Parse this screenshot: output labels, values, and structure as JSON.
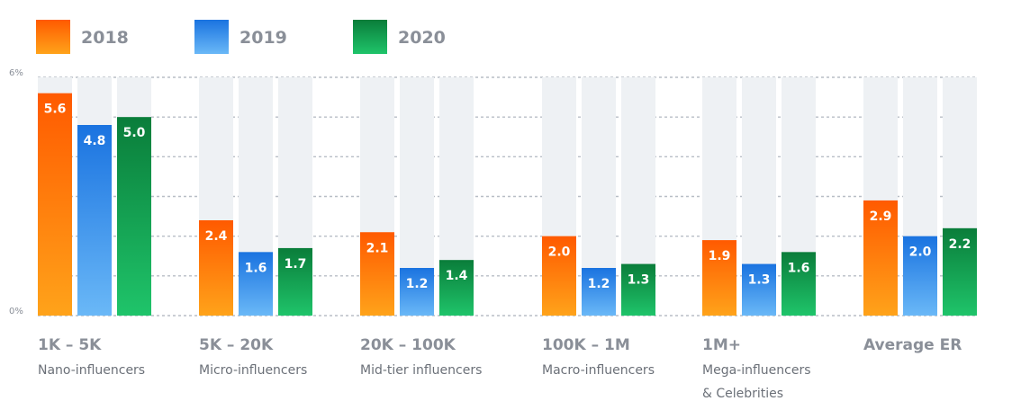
{
  "chart_data": {
    "type": "bar",
    "y_tick_labels": [
      "6%",
      "0%"
    ],
    "ylim": [
      0,
      6
    ],
    "legend_position": "top-left",
    "grid": true,
    "categories": [
      {
        "range": "1K – 5K",
        "tier": [
          "Nano-influencers"
        ]
      },
      {
        "range": "5K – 20K",
        "tier": [
          "Micro-influencers"
        ]
      },
      {
        "range": "20K – 100K",
        "tier": [
          "Mid-tier influencers"
        ]
      },
      {
        "range": "100K – 1M",
        "tier": [
          "Macro-influencers"
        ]
      },
      {
        "range": "1M+",
        "tier": [
          "Mega-influencers",
          "& Celebrities"
        ]
      },
      {
        "range": "Average ER",
        "tier": []
      }
    ],
    "series": [
      {
        "name": "2018",
        "values": [
          5.6,
          2.4,
          2.1,
          2.0,
          1.9,
          2.9
        ],
        "labels": [
          "5.6",
          "2.4",
          "2.1",
          "2.0",
          "1.9",
          "2.9"
        ],
        "color_top": "#ff5a00",
        "color_bottom": "#ffa31a"
      },
      {
        "name": "2019",
        "values": [
          4.8,
          1.6,
          1.2,
          1.2,
          1.3,
          2.0
        ],
        "labels": [
          "4.8",
          "1.6",
          "1.2",
          "1.2",
          "1.3",
          "2.0"
        ],
        "color_top": "#1a73e0",
        "color_bottom": "#6ab8f7"
      },
      {
        "name": "2020",
        "values": [
          5.0,
          1.7,
          1.4,
          1.3,
          1.6,
          2.2
        ],
        "labels": [
          "5.0",
          "1.7",
          "1.4",
          "1.3",
          "1.6",
          "2.2"
        ],
        "color_top": "#0a7d3a",
        "color_bottom": "#1fc46a"
      }
    ],
    "background_bar_color": "#eef1f4",
    "grid_color": "#b8bec6"
  }
}
